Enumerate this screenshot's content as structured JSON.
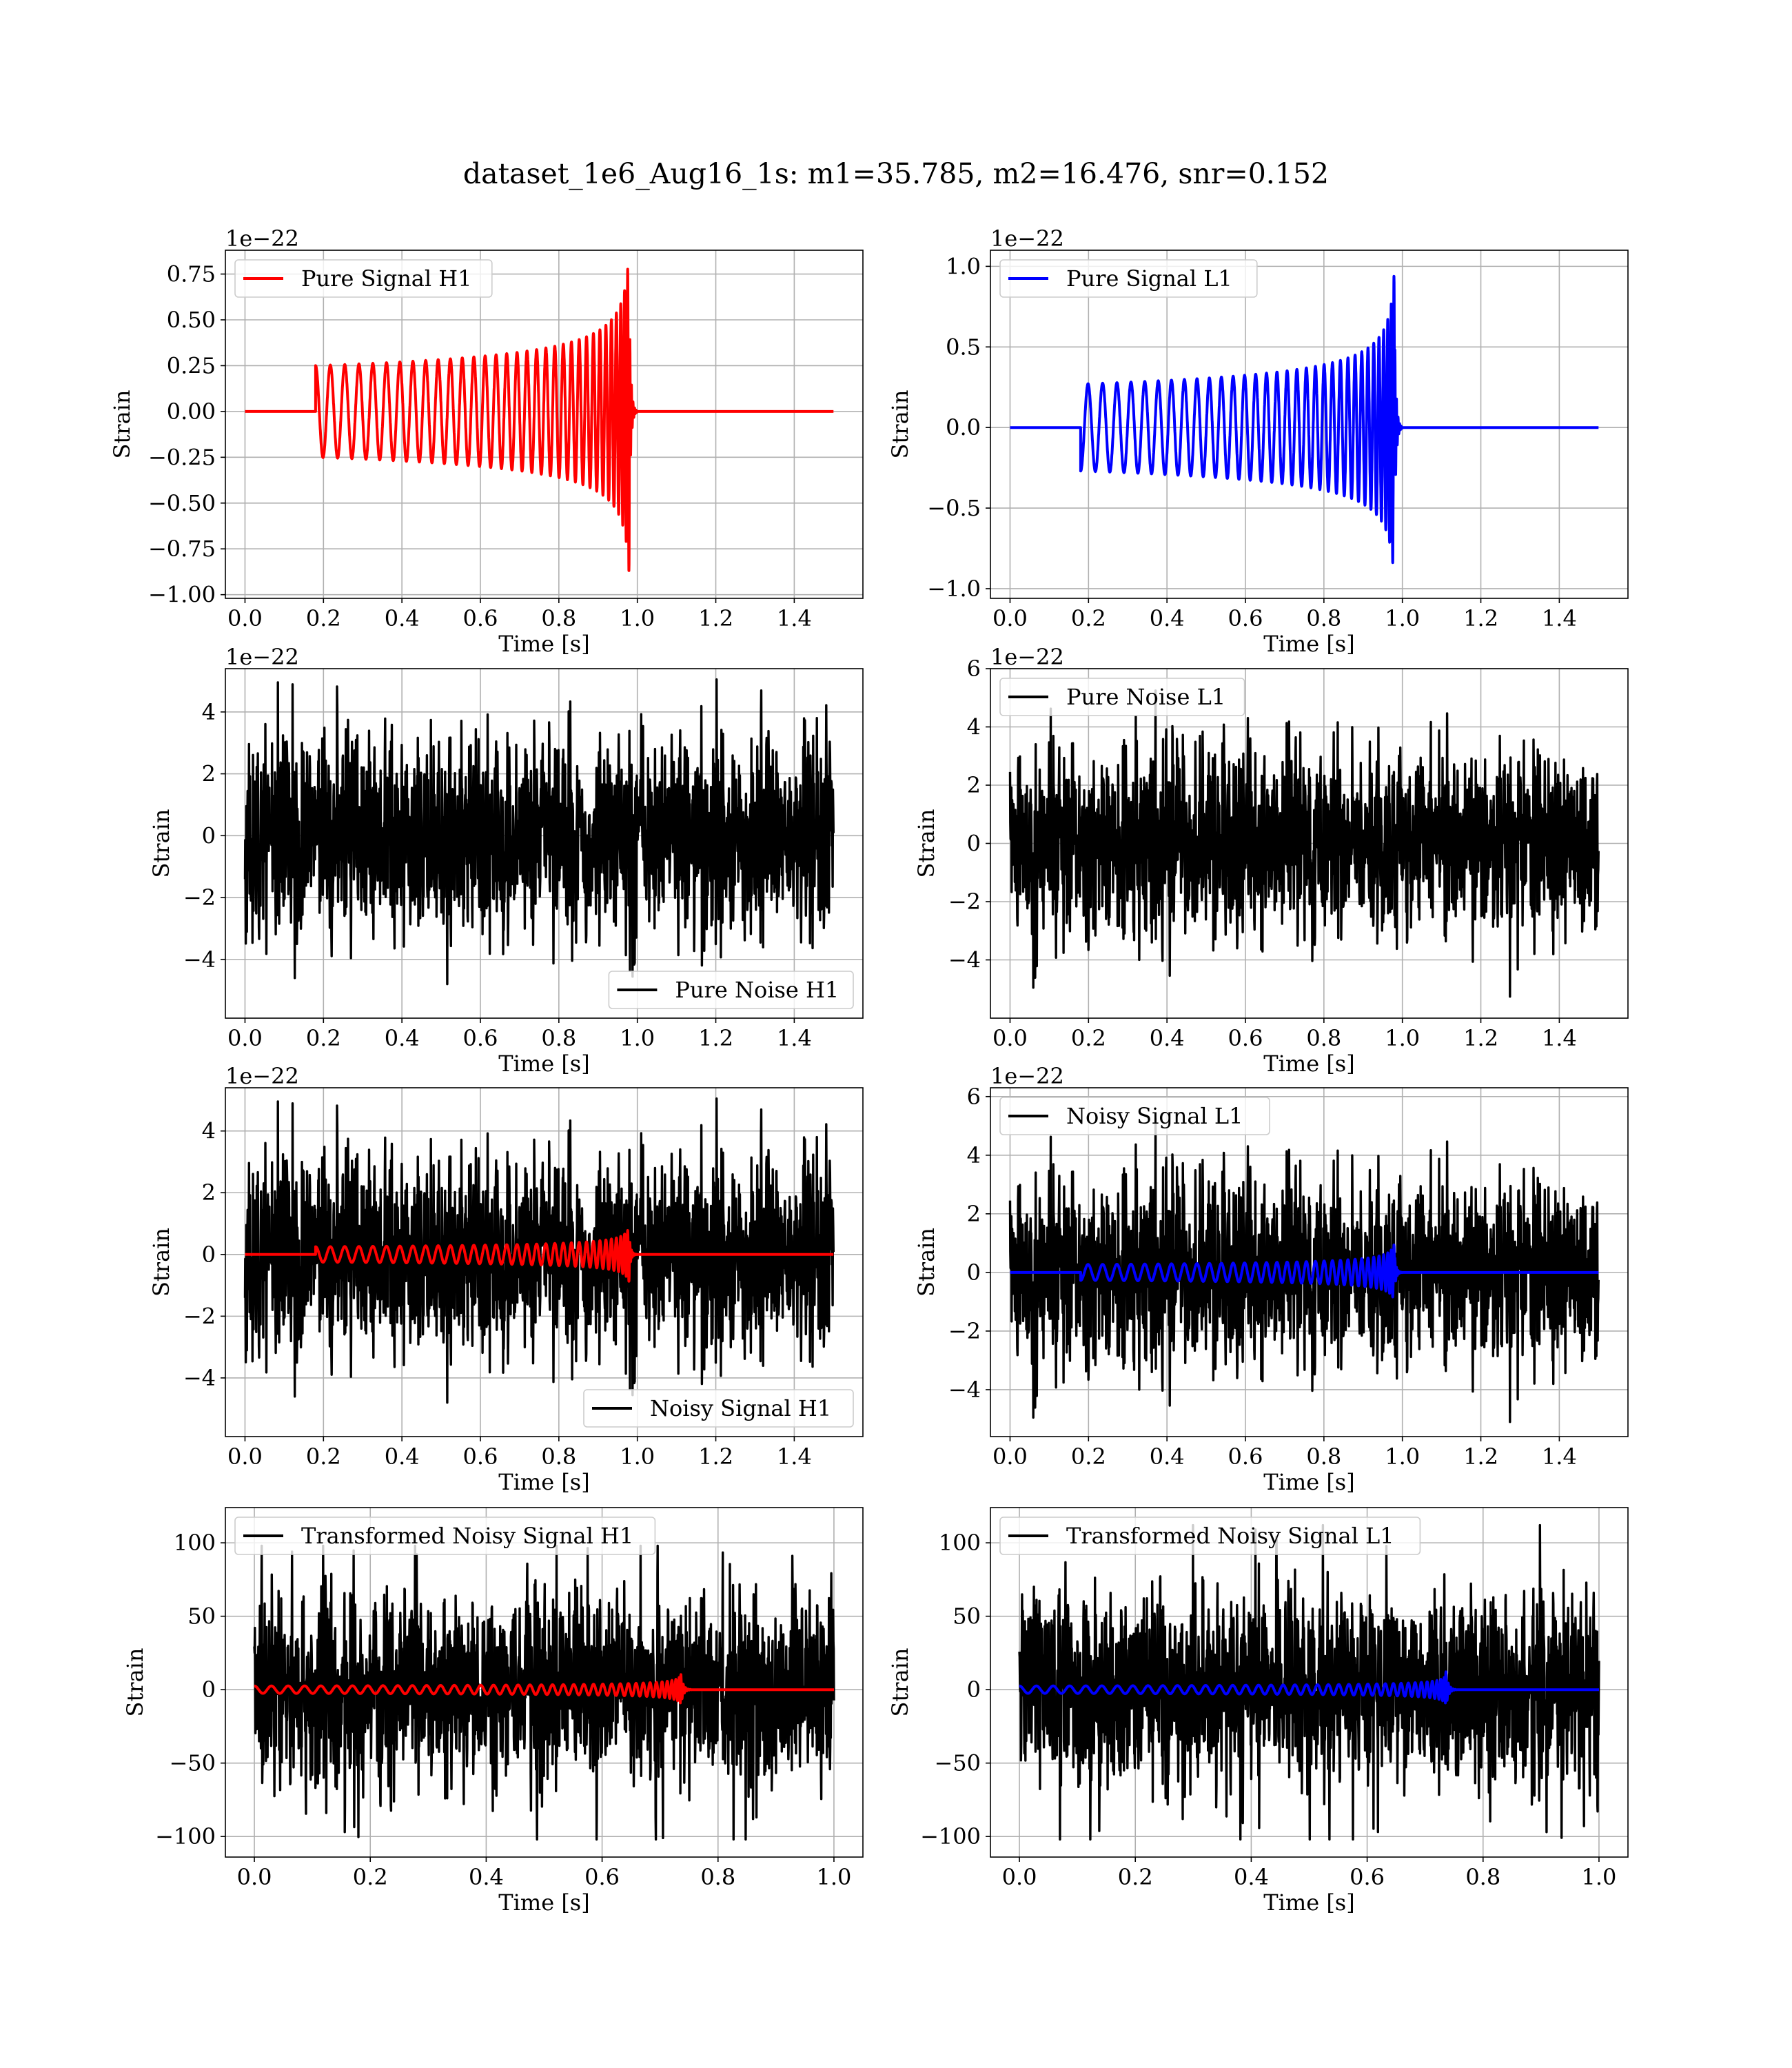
{
  "figure": {
    "title": "dataset_1e6_Aug16_1s: m1=35.785, m2=16.476, snr=0.152"
  },
  "style": {
    "grid_color": "#b0b0b0",
    "axes_color": "#000000",
    "h1_color": "#ff0000",
    "l1_color": "#0000ff",
    "noise_color": "#000000"
  },
  "chart_data": [
    {
      "type": "line",
      "id": "pure-signal-h1",
      "xlabel": "Time [s]",
      "ylabel": "Strain",
      "offset_text": "1e−22",
      "xlim": [
        -0.05,
        1.575
      ],
      "ylim": [
        -1.02,
        0.88
      ],
      "xticks": [
        0.0,
        0.2,
        0.4,
        0.6,
        0.8,
        1.0,
        1.2,
        1.4
      ],
      "xticklabels": [
        "0.0",
        "0.2",
        "0.4",
        "0.6",
        "0.8",
        "1.0",
        "1.2",
        "1.4"
      ],
      "yticks": [
        -1.0,
        -0.75,
        -0.5,
        -0.25,
        0.0,
        0.25,
        0.5,
        0.75
      ],
      "yticklabels": [
        "−1.00",
        "−0.75",
        "−0.50",
        "−0.25",
        "0.00",
        "0.25",
        "0.50",
        "0.75"
      ],
      "grid": true,
      "legend_placement": "upper left",
      "series": [
        {
          "name": "Pure Signal H1",
          "kind": "chirp",
          "color": "#ff0000",
          "amp0": 0.25,
          "amp_peak": 0.84,
          "amp_min": -0.93,
          "t_start": 0.18,
          "t_merge": 0.98,
          "t_end": 1.5,
          "n_cycles": 34,
          "in_legend": true
        }
      ]
    },
    {
      "type": "line",
      "id": "pure-signal-l1",
      "xlabel": "Time [s]",
      "ylabel": "Strain",
      "offset_text": "1e−22",
      "xlim": [
        -0.05,
        1.575
      ],
      "ylim": [
        -1.06,
        1.1
      ],
      "xticks": [
        0.0,
        0.2,
        0.4,
        0.6,
        0.8,
        1.0,
        1.2,
        1.4
      ],
      "xticklabels": [
        "0.0",
        "0.2",
        "0.4",
        "0.6",
        "0.8",
        "1.0",
        "1.2",
        "1.4"
      ],
      "yticks": [
        -1.0,
        -0.5,
        0.0,
        0.5,
        1.0
      ],
      "yticklabels": [
        "−1.0",
        "−0.5",
        "0.0",
        "0.5",
        "1.0"
      ],
      "grid": true,
      "legend_placement": "upper left",
      "series": [
        {
          "name": "Pure Signal L1",
          "kind": "chirp",
          "color": "#0000ff",
          "amp0": -0.27,
          "amp_peak": 1.03,
          "amp_min": -0.96,
          "t_start": 0.18,
          "t_merge": 0.98,
          "t_end": 1.5,
          "n_cycles": 34,
          "in_legend": true
        }
      ]
    },
    {
      "type": "line",
      "id": "pure-noise-h1",
      "xlabel": "Time [s]",
      "ylabel": "Strain",
      "offset_text": "1e−22",
      "xlim": [
        -0.05,
        1.575
      ],
      "ylim": [
        -5.9,
        5.4
      ],
      "xticks": [
        0.0,
        0.2,
        0.4,
        0.6,
        0.8,
        1.0,
        1.2,
        1.4
      ],
      "xticklabels": [
        "0.0",
        "0.2",
        "0.4",
        "0.6",
        "0.8",
        "1.0",
        "1.2",
        "1.4"
      ],
      "yticks": [
        -4,
        -2,
        0,
        2,
        4
      ],
      "yticklabels": [
        "−4",
        "−2",
        "0",
        "2",
        "4"
      ],
      "grid": true,
      "legend_placement": "lower right",
      "series": [
        {
          "name": "Pure Noise H1",
          "kind": "noise",
          "color": "#000000",
          "sigma": 1.45,
          "max": 5.05,
          "min": -4.8,
          "t_start": 0.0,
          "t_end": 1.5,
          "seed": 11,
          "in_legend": true
        }
      ]
    },
    {
      "type": "line",
      "id": "pure-noise-l1",
      "xlabel": "Time [s]",
      "ylabel": "Strain",
      "offset_text": "1e−22",
      "xlim": [
        -0.05,
        1.575
      ],
      "ylim": [
        -6.0,
        6.0
      ],
      "xticks": [
        0.0,
        0.2,
        0.4,
        0.6,
        0.8,
        1.0,
        1.2,
        1.4
      ],
      "xticklabels": [
        "0.0",
        "0.2",
        "0.4",
        "0.6",
        "0.8",
        "1.0",
        "1.2",
        "1.4"
      ],
      "yticks": [
        -4,
        -2,
        0,
        2,
        4,
        6
      ],
      "yticklabels": [
        "−4",
        "−2",
        "0",
        "2",
        "4",
        "6"
      ],
      "grid": true,
      "legend_placement": "upper left",
      "series": [
        {
          "name": "Pure Noise L1",
          "kind": "noise",
          "color": "#000000",
          "sigma": 1.45,
          "max": 5.6,
          "min": -5.4,
          "t_start": 0.0,
          "t_end": 1.5,
          "seed": 23,
          "in_legend": true
        }
      ]
    },
    {
      "type": "line",
      "id": "noisy-signal-h1",
      "xlabel": "Time [s]",
      "ylabel": "Strain",
      "offset_text": "1e−22",
      "xlim": [
        -0.05,
        1.575
      ],
      "ylim": [
        -5.9,
        5.4
      ],
      "xticks": [
        0.0,
        0.2,
        0.4,
        0.6,
        0.8,
        1.0,
        1.2,
        1.4
      ],
      "xticklabels": [
        "0.0",
        "0.2",
        "0.4",
        "0.6",
        "0.8",
        "1.0",
        "1.2",
        "1.4"
      ],
      "yticks": [
        -4,
        -2,
        0,
        2,
        4
      ],
      "yticklabels": [
        "−4",
        "−2",
        "0",
        "2",
        "4"
      ],
      "grid": true,
      "legend_placement": "lower right",
      "series": [
        {
          "name": "Noisy Signal H1",
          "kind": "noise",
          "color": "#000000",
          "sigma": 1.45,
          "max": 5.05,
          "min": -4.8,
          "t_start": 0.0,
          "t_end": 1.5,
          "seed": 11,
          "in_legend": true
        },
        {
          "name": "",
          "kind": "chirp",
          "color": "#ff0000",
          "amp0": 0.25,
          "amp_peak": 0.84,
          "amp_min": -0.93,
          "t_start": 0.18,
          "t_merge": 0.98,
          "t_end": 1.5,
          "n_cycles": 34,
          "in_legend": false
        }
      ]
    },
    {
      "type": "line",
      "id": "noisy-signal-l1",
      "xlabel": "Time [s]",
      "ylabel": "Strain",
      "offset_text": "1e−22",
      "xlim": [
        -0.05,
        1.575
      ],
      "ylim": [
        -5.6,
        6.3
      ],
      "xticks": [
        0.0,
        0.2,
        0.4,
        0.6,
        0.8,
        1.0,
        1.2,
        1.4
      ],
      "xticklabels": [
        "0.0",
        "0.2",
        "0.4",
        "0.6",
        "0.8",
        "1.0",
        "1.2",
        "1.4"
      ],
      "yticks": [
        -4,
        -2,
        0,
        2,
        4,
        6
      ],
      "yticklabels": [
        "−4",
        "−2",
        "0",
        "2",
        "4",
        "6"
      ],
      "grid": true,
      "legend_placement": "upper left",
      "series": [
        {
          "name": "Noisy Signal L1",
          "kind": "noise",
          "color": "#000000",
          "sigma": 1.45,
          "max": 5.75,
          "min": -5.1,
          "t_start": 0.0,
          "t_end": 1.5,
          "seed": 23,
          "in_legend": true
        },
        {
          "name": "",
          "kind": "chirp",
          "color": "#0000ff",
          "amp0": -0.27,
          "amp_peak": 1.03,
          "amp_min": -0.96,
          "t_start": 0.18,
          "t_merge": 0.98,
          "t_end": 1.5,
          "n_cycles": 34,
          "in_legend": false
        }
      ]
    },
    {
      "type": "line",
      "id": "transformed-noisy-signal-h1",
      "xlabel": "Time [s]",
      "ylabel": "Strain",
      "offset_text": "",
      "xlim": [
        -0.05,
        1.05
      ],
      "ylim": [
        -114,
        124
      ],
      "xticks": [
        0.0,
        0.2,
        0.4,
        0.6,
        0.8,
        1.0
      ],
      "xticklabels": [
        "0.0",
        "0.2",
        "0.4",
        "0.6",
        "0.8",
        "1.0"
      ],
      "yticks": [
        -100,
        -50,
        0,
        50,
        100
      ],
      "yticklabels": [
        "−100",
        "−50",
        "0",
        "50",
        "100"
      ],
      "grid": true,
      "legend_placement": "upper left",
      "series": [
        {
          "name": "Transformed Noisy Signal H1",
          "kind": "noise",
          "color": "#000000",
          "sigma": 30,
          "max": 98,
          "min": -102,
          "t_start": 0.0,
          "t_end": 1.0,
          "seed": 37,
          "in_legend": true
        },
        {
          "name": "",
          "kind": "chirp",
          "color": "#ff0000",
          "amp0": 2.5,
          "amp_peak": 22,
          "amp_min": -22,
          "t_start": 0.0,
          "t_merge": 0.735,
          "t_end": 1.0,
          "n_cycles": 40,
          "in_legend": false
        }
      ]
    },
    {
      "type": "line",
      "id": "transformed-noisy-signal-l1",
      "xlabel": "Time [s]",
      "ylabel": "Strain",
      "offset_text": "",
      "xlim": [
        -0.05,
        1.05
      ],
      "ylim": [
        -114,
        124
      ],
      "xticks": [
        0.0,
        0.2,
        0.4,
        0.6,
        0.8,
        1.0
      ],
      "xticklabels": [
        "0.0",
        "0.2",
        "0.4",
        "0.6",
        "0.8",
        "1.0"
      ],
      "yticks": [
        -100,
        -50,
        0,
        50,
        100
      ],
      "yticklabels": [
        "−100",
        "−50",
        "0",
        "50",
        "100"
      ],
      "grid": true,
      "legend_placement": "upper left",
      "series": [
        {
          "name": "Transformed Noisy Signal L1",
          "kind": "noise",
          "color": "#000000",
          "sigma": 30,
          "max": 112,
          "min": -102,
          "t_start": 0.0,
          "t_end": 1.0,
          "seed": 53,
          "in_legend": true
        },
        {
          "name": "",
          "kind": "chirp",
          "color": "#0000ff",
          "amp0": 2.5,
          "amp_peak": 26,
          "amp_min": -25,
          "t_start": 0.0,
          "t_merge": 0.735,
          "t_end": 1.0,
          "n_cycles": 40,
          "in_legend": false
        }
      ]
    }
  ]
}
